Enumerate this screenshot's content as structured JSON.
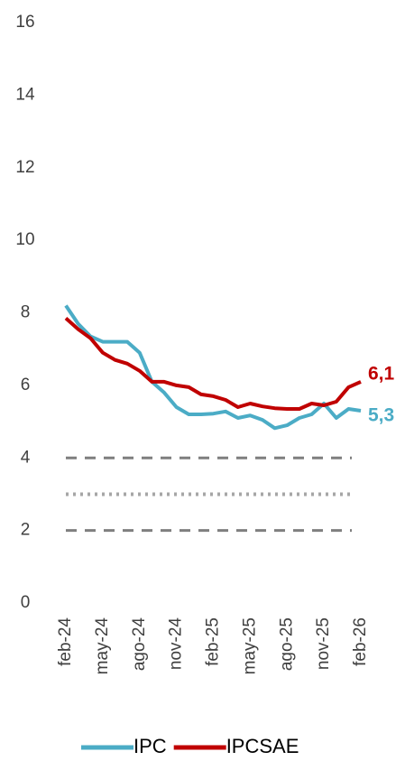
{
  "chart_data": {
    "type": "line",
    "categories": [
      "feb-24",
      null,
      null,
      "may-24",
      null,
      null,
      "ago-24",
      null,
      null,
      "nov-24",
      null,
      null,
      "feb-25",
      null,
      null,
      "may-25",
      null,
      null,
      "ago-25",
      null,
      null,
      "nov-25",
      null,
      null,
      "feb-26"
    ],
    "series": [
      {
        "name": "IPC",
        "color": "#4bacc6",
        "values": [
          8.2,
          7.7,
          7.35,
          7.2,
          7.2,
          7.2,
          6.9,
          6.1,
          5.8,
          5.4,
          5.2,
          5.2,
          5.22,
          5.28,
          5.1,
          5.17,
          5.05,
          4.82,
          4.9,
          5.1,
          5.2,
          5.5,
          5.1,
          5.35,
          5.3
        ],
        "value_labels": [
          null,
          null,
          null,
          null,
          null,
          null,
          null,
          null,
          null,
          null,
          null,
          null,
          null,
          null,
          null,
          null,
          null,
          null,
          null,
          null,
          null,
          null,
          null,
          null,
          "5,3"
        ]
      },
      {
        "name": "IPCSAE",
        "color": "#c00000",
        "values": [
          7.85,
          7.55,
          7.3,
          6.9,
          6.7,
          6.6,
          6.4,
          6.1,
          6.1,
          6.0,
          5.95,
          5.75,
          5.7,
          5.6,
          5.4,
          5.5,
          5.42,
          5.37,
          5.35,
          5.35,
          5.5,
          5.45,
          5.55,
          5.95,
          6.1
        ],
        "value_labels": [
          null,
          null,
          null,
          null,
          null,
          null,
          null,
          null,
          null,
          null,
          null,
          null,
          null,
          null,
          null,
          null,
          null,
          null,
          null,
          null,
          null,
          null,
          null,
          null,
          "6,1"
        ]
      }
    ],
    "reference_lines": [
      {
        "value": 4,
        "style": "dashed",
        "color": "#7f7f7f"
      },
      {
        "value": 3,
        "style": "dotted",
        "color": "#a6a6a6"
      },
      {
        "value": 2,
        "style": "dashed",
        "color": "#7f7f7f"
      }
    ],
    "ylim": [
      0,
      16
    ],
    "yticks": [
      0,
      2,
      4,
      6,
      8,
      10,
      12,
      14,
      16
    ],
    "grid": false,
    "legend": "bottom"
  }
}
